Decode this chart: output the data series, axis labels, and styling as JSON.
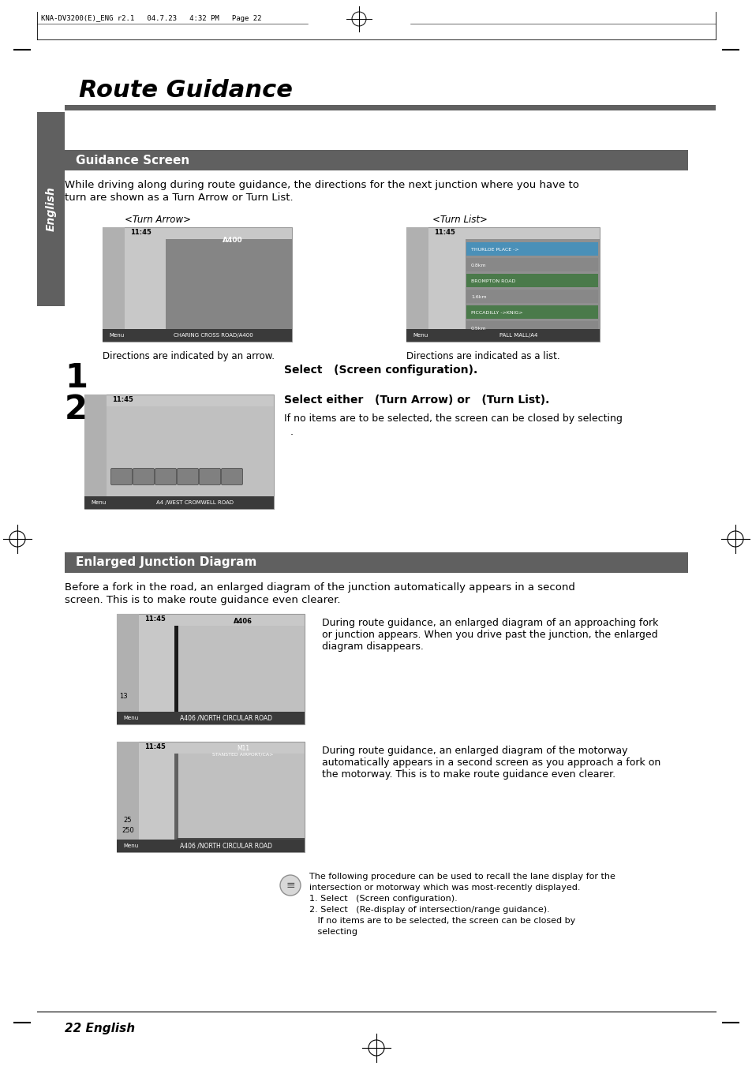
{
  "page_bg": "#ffffff",
  "header_text": "KNA-DV3200(E)_ENG r2.1   04.7.23   4:32 PM   Page 22",
  "title": "Route Guidance",
  "section1_header": "Guidance Screen",
  "section1_header_bg": "#606060",
  "section1_header_color": "#ffffff",
  "section1_body_line1": "While driving along during route guidance, the directions for the next junction where you have to",
  "section1_body_line2": "turn are shown as a Turn Arrow or Turn List.",
  "turn_arrow_label": "<Turn Arrow>",
  "turn_list_label": "<Turn List>",
  "caption_arrow": "Directions are indicated by an arrow.",
  "caption_list": "Directions are indicated as a list.",
  "step1_label": "1",
  "step1_text": "Select   (Screen configuration).",
  "step2_label": "2",
  "step2_text": "Select either   (Turn Arrow) or   (Turn List).",
  "step2_note_line1": "If no items are to be selected, the screen can be closed by selecting",
  "step2_note_line2": "  .",
  "section2_header": "Enlarged Junction Diagram",
  "section2_header_bg": "#606060",
  "section2_header_color": "#ffffff",
  "section2_body_line1": "Before a fork in the road, an enlarged diagram of the junction automatically appears in a second",
  "section2_body_line2": "screen. This is to make route guidance even clearer.",
  "img1_caption_line1": "During route guidance, an enlarged diagram of an approaching fork",
  "img1_caption_line2": "or junction appears. When you drive past the junction, the enlarged",
  "img1_caption_line3": "diagram disappears.",
  "img2_caption_line1": "During route guidance, an enlarged diagram of the motorway",
  "img2_caption_line2": "automatically appears in a second screen as you approach a fork on",
  "img2_caption_line3": "the motorway. This is to make route guidance even clearer.",
  "note_line1": "The following procedure can be used to recall the lane display for the",
  "note_line2": "intersection or motorway which was most-recently displayed.",
  "note_line3": "1. Select   (Screen configuration).",
  "note_line4": "2. Select   (Re-display of intersection/range guidance).",
  "note_line5": "   If no items are to be selected, the screen can be closed by",
  "note_line6": "   selecting  ",
  "footer_text": "22 English",
  "sidebar_color": "#606060",
  "sidebar_text": "English",
  "title_bar_color": "#606060",
  "gray_img": "#c8c8c8",
  "dark_gray": "#888888",
  "darker_gray": "#505050",
  "white": "#ffffff"
}
